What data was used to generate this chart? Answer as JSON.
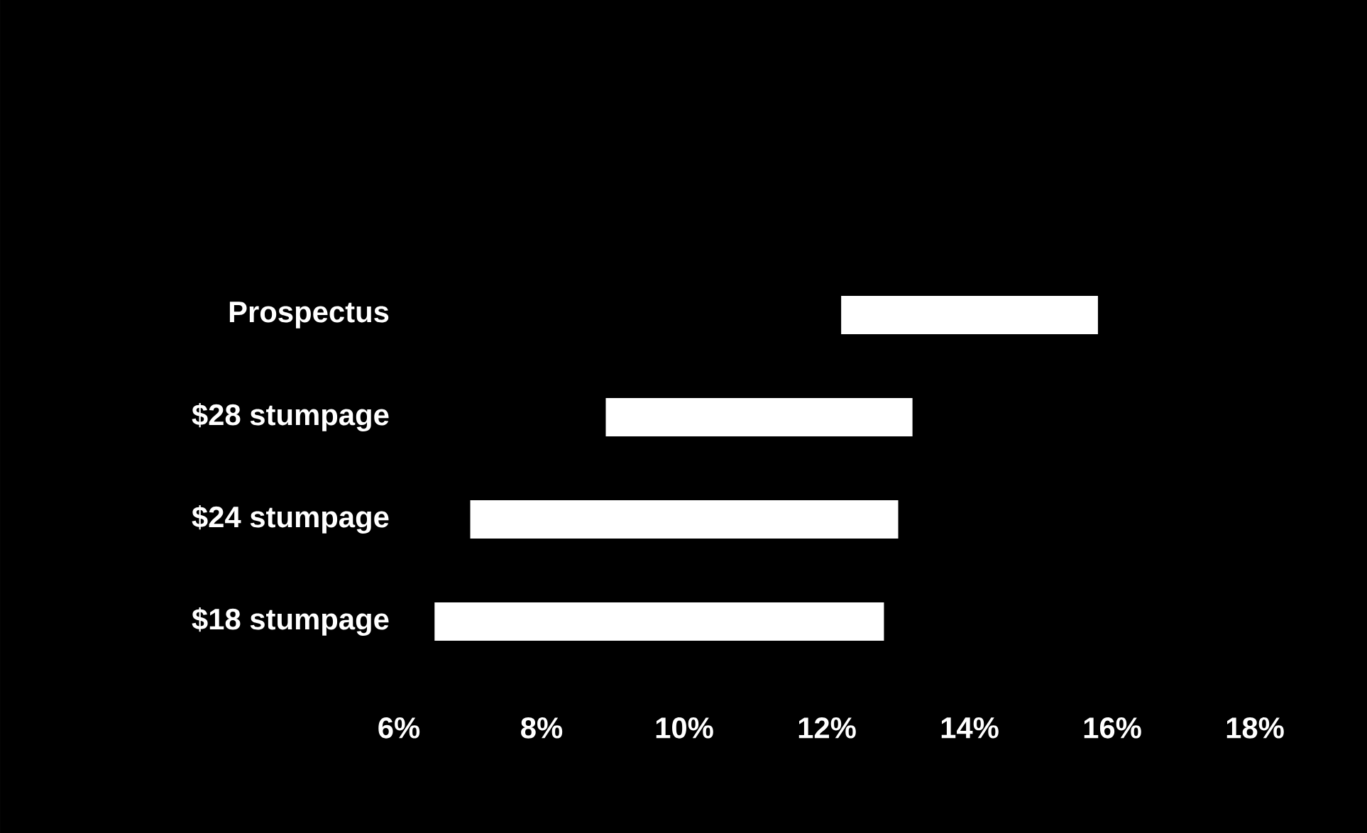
{
  "chart_data": {
    "type": "bar",
    "orientation": "horizontal",
    "categories": [
      "Prospectus",
      "$28 stumpage",
      "$24 stumpage",
      "$18 stumpage"
    ],
    "base": [
      12.2,
      8.9,
      7.0,
      6.5
    ],
    "values": [
      3.6,
      4.3,
      6.0,
      6.3
    ],
    "color": "#ffffff",
    "xlim": [
      6,
      18
    ],
    "xticks": [
      {
        "value": 6,
        "label": "6%"
      },
      {
        "value": 8,
        "label": "8%"
      },
      {
        "value": 10,
        "label": "10%"
      },
      {
        "value": 12,
        "label": "12%"
      },
      {
        "value": 14,
        "label": "14%"
      },
      {
        "value": 16,
        "label": "16%"
      },
      {
        "value": 18,
        "label": "18%"
      }
    ]
  }
}
